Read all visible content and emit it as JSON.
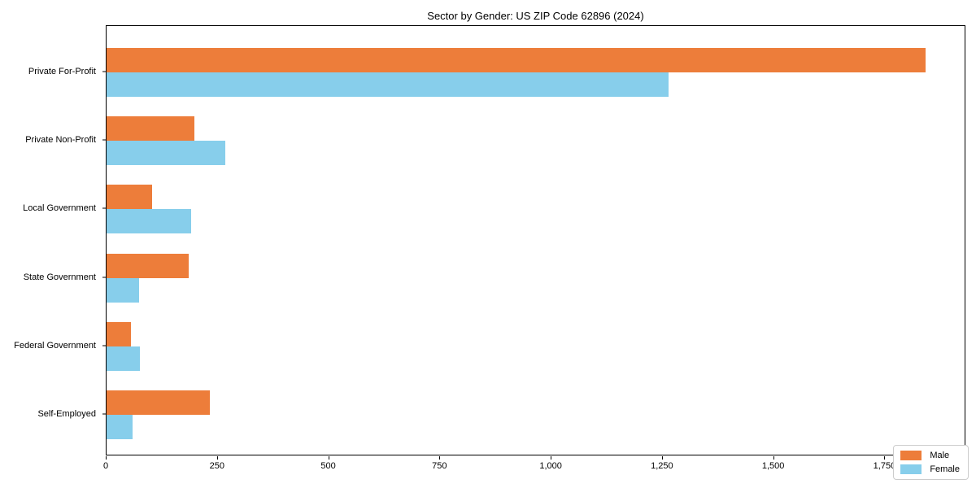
{
  "chart_data": {
    "type": "bar",
    "orientation": "horizontal",
    "title": "Sector by Gender: US ZIP Code 62896 (2024)",
    "xlabel": "",
    "ylabel": "",
    "categories": [
      "Private For-Profit",
      "Private Non-Profit",
      "Local Government",
      "State Government",
      "Federal Government",
      "Self-Employed"
    ],
    "series": [
      {
        "name": "Male",
        "color": "#ED7D3A",
        "values": [
          1840,
          198,
          102,
          184,
          55,
          233
        ]
      },
      {
        "name": "Female",
        "color": "#87CEEB",
        "values": [
          1263,
          266,
          190,
          74,
          75,
          58
        ]
      }
    ],
    "xlim": [
      0,
      1932
    ],
    "xticks": [
      {
        "value": 0,
        "label": "0"
      },
      {
        "value": 250,
        "label": "250"
      },
      {
        "value": 500,
        "label": "500"
      },
      {
        "value": 750,
        "label": "750"
      },
      {
        "value": 1000,
        "label": "1,000"
      },
      {
        "value": 1250,
        "label": "1,250"
      },
      {
        "value": 1500,
        "label": "1,500"
      },
      {
        "value": 1750,
        "label": "1,750"
      }
    ],
    "grid": false,
    "legend": {
      "position": "lower right",
      "entries": [
        "Male",
        "Female"
      ]
    }
  }
}
